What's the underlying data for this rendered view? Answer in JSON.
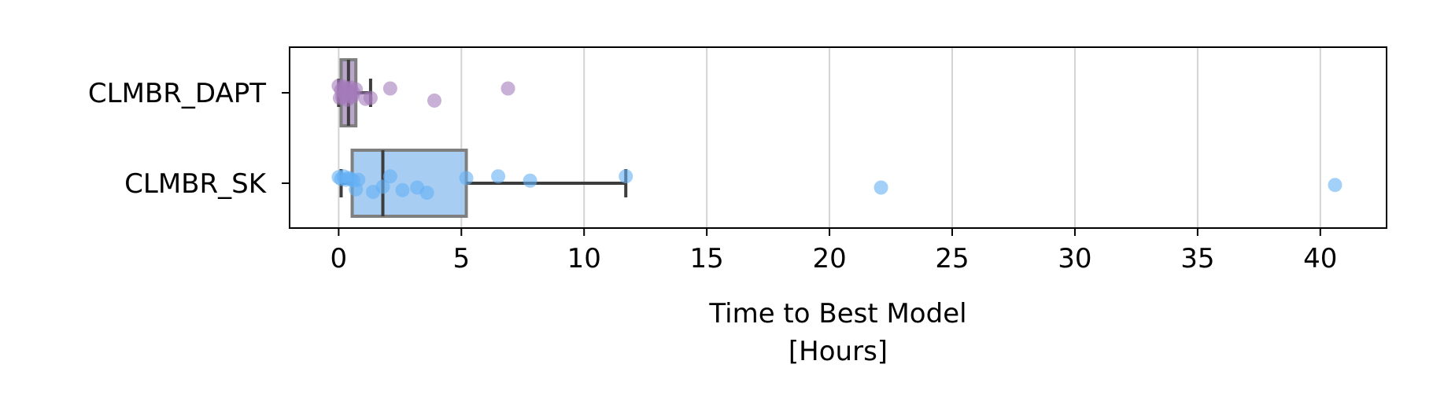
{
  "chart_data": {
    "type": "box",
    "title": "",
    "xlabel_lines": [
      "Time to Best Model",
      "[Hours]"
    ],
    "ylabel": "",
    "xlim": [
      -2.0,
      42.7
    ],
    "xticks": [
      0,
      5,
      10,
      15,
      20,
      25,
      30,
      35,
      40
    ],
    "x_grid": true,
    "orientation": "horizontal",
    "categories": [
      "CLMBR_DAPT",
      "CLMBR_SK"
    ],
    "series": [
      {
        "name": "CLMBR_DAPT",
        "color": "#8e5aa6",
        "box_color": "#b39cc4",
        "point_color": "#a57cbb",
        "whisker_low": 0.0,
        "q1": 0.1,
        "median": 0.4,
        "q3": 0.7,
        "whisker_high": 1.3,
        "points": [
          {
            "x": 0.0,
            "j": -0.08
          },
          {
            "x": 0.05,
            "j": 0.06
          },
          {
            "x": 0.1,
            "j": -0.03
          },
          {
            "x": 0.15,
            "j": 0.05
          },
          {
            "x": 0.2,
            "j": -0.07
          },
          {
            "x": 0.25,
            "j": 0.02
          },
          {
            "x": 0.3,
            "j": -0.05
          },
          {
            "x": 0.35,
            "j": 0.08
          },
          {
            "x": 0.4,
            "j": -0.02
          },
          {
            "x": 0.45,
            "j": 0.04
          },
          {
            "x": 0.5,
            "j": -0.06
          },
          {
            "x": 0.55,
            "j": 0.05
          },
          {
            "x": 0.6,
            "j": 0.0
          },
          {
            "x": 0.7,
            "j": -0.04
          },
          {
            "x": 1.1,
            "j": 0.07
          },
          {
            "x": 1.3,
            "j": 0.06
          },
          {
            "x": 2.1,
            "j": -0.05
          },
          {
            "x": 3.9,
            "j": 0.09
          },
          {
            "x": 6.9,
            "j": -0.05
          }
        ]
      },
      {
        "name": "CLMBR_SK",
        "color": "#1e88e5",
        "box_color": "#9ec8f2",
        "point_color": "#64b1f5",
        "whisker_low": 0.1,
        "q1": 0.55,
        "median": 1.8,
        "q3": 5.2,
        "whisker_high": 11.7,
        "points": [
          {
            "x": 0.0,
            "j": -0.07
          },
          {
            "x": 0.1,
            "j": -0.05
          },
          {
            "x": 0.2,
            "j": -0.08
          },
          {
            "x": 0.3,
            "j": -0.04
          },
          {
            "x": 0.4,
            "j": -0.06
          },
          {
            "x": 0.5,
            "j": -0.05
          },
          {
            "x": 0.6,
            "j": -0.03
          },
          {
            "x": 0.8,
            "j": -0.04
          },
          {
            "x": 0.7,
            "j": 0.07
          },
          {
            "x": 1.4,
            "j": 0.1
          },
          {
            "x": 1.8,
            "j": 0.04
          },
          {
            "x": 2.1,
            "j": -0.08
          },
          {
            "x": 2.6,
            "j": 0.08
          },
          {
            "x": 3.2,
            "j": 0.05
          },
          {
            "x": 3.6,
            "j": 0.11
          },
          {
            "x": 5.2,
            "j": -0.06
          },
          {
            "x": 6.5,
            "j": -0.08
          },
          {
            "x": 7.8,
            "j": -0.03
          },
          {
            "x": 11.7,
            "j": -0.08
          },
          {
            "x": 22.1,
            "j": 0.05
          },
          {
            "x": 40.6,
            "j": 0.02
          }
        ]
      }
    ]
  }
}
